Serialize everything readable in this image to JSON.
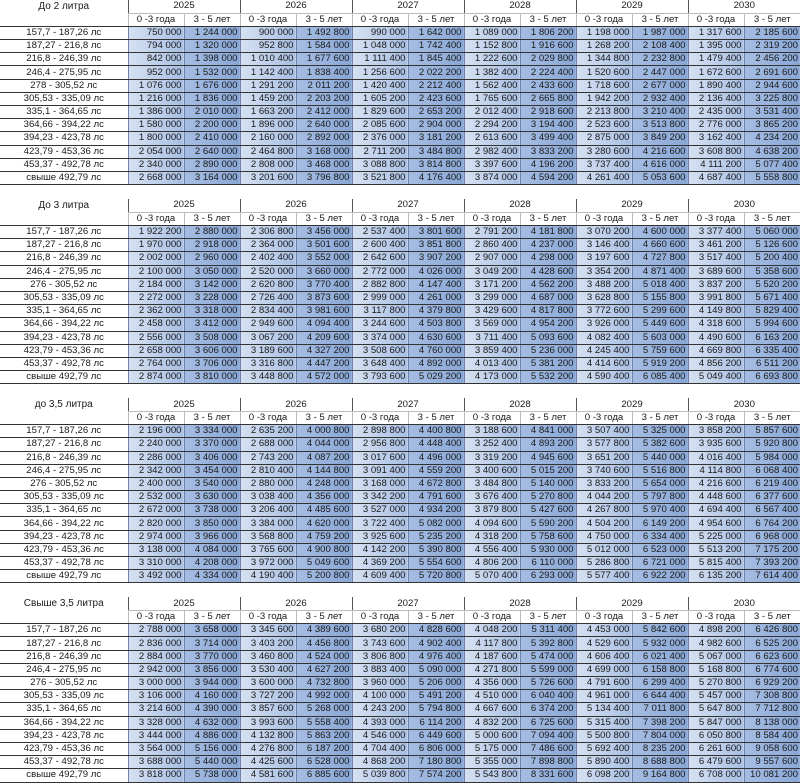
{
  "sub_labels": [
    "0 -3 года",
    "3 - 5 лет"
  ],
  "years": [
    "2025",
    "2026",
    "2027",
    "2028",
    "2029",
    "2030"
  ],
  "colors": {
    "col_0_3": "#c2d3ee",
    "col_3_5": "#98b2dd"
  },
  "tables": [
    {
      "title": "До 2 литра",
      "rows": [
        {
          "label": "157,7  - 187,26 лс",
          "values": [
            "750 000",
            "1 244 000",
            "900 000",
            "1 492 800",
            "990 000",
            "1 642 000",
            "1 089 000",
            "1 806 200",
            "1 198 000",
            "1 987 000",
            "1 317 600",
            "2 185 600"
          ]
        },
        {
          "label": "187,27 - 216,8 лс",
          "values": [
            "794 000",
            "1 320 000",
            "952 800",
            "1 584 000",
            "1 048 000",
            "1 742 400",
            "1 152 800",
            "1 916 600",
            "1 268 200",
            "2 108 400",
            "1 395 000",
            "2 319 200"
          ]
        },
        {
          "label": "216,8  - 246,39 лс",
          "values": [
            "842 000",
            "1 398 000",
            "1 010 400",
            "1 677 600",
            "1 111 400",
            "1 845 400",
            "1 222 600",
            "2 029 800",
            "1 344 800",
            "2 232 800",
            "1 479 400",
            "2 456 200"
          ]
        },
        {
          "label": "246,4  - 275,95 лс",
          "values": [
            "952 000",
            "1 532 000",
            "1 142 400",
            "1 838 400",
            "1 256 600",
            "2 022 200",
            "1 382 400",
            "2 224 400",
            "1 520 600",
            "2 447 000",
            "1 672 600",
            "2 691 600"
          ]
        },
        {
          "label": "278   - 305,52 лс",
          "values": [
            "1 076 000",
            "1 676 000",
            "1 291 200",
            "2 011 200",
            "1 420 400",
            "2 212 400",
            "1 562 400",
            "2 433 600",
            "1 718 600",
            "2 677 000",
            "1 890 400",
            "2 944 600"
          ]
        },
        {
          "label": "305,53 - 335,09 лс",
          "values": [
            "1 216 000",
            "1 836 000",
            "1 459 200",
            "2 203 200",
            "1 605 200",
            "2 423 600",
            "1 765 600",
            "2 665 800",
            "1 942 200",
            "2 932 400",
            "2 136 400",
            "3 225 800"
          ]
        },
        {
          "label": "335,1  - 364,65 лс",
          "values": [
            "1 386 000",
            "2 010 000",
            "1 663 200",
            "2 412 000",
            "1 829 600",
            "2 653 200",
            "2 012 400",
            "2 918 600",
            "2 213 800",
            "3 210 400",
            "2 435 000",
            "3 531 400"
          ]
        },
        {
          "label": "364,66 - 394,22 лс",
          "values": [
            "1 580 000",
            "2 200 000",
            "1 896 000",
            "2 640 000",
            "2 085 600",
            "2 904 000",
            "2 294 200",
            "3 194 400",
            "2 523 600",
            "3 513 800",
            "2 776 000",
            "3 865 200"
          ]
        },
        {
          "label": "394,23 - 423,78 лс",
          "values": [
            "1 800 000",
            "2 410 000",
            "2 160 000",
            "2 892 000",
            "2 376 000",
            "3 181 200",
            "2 613 600",
            "3 499 400",
            "2 875 000",
            "3 849 200",
            "3 162 400",
            "4 234 200"
          ]
        },
        {
          "label": "423,79 - 453,36 лс",
          "values": [
            "2 054 000",
            "2 640 000",
            "2 464 800",
            "3 168 000",
            "2 711 200",
            "3 484 800",
            "2 982 400",
            "3 833 200",
            "3 280 600",
            "4 216 600",
            "3 608 800",
            "4 638 200"
          ]
        },
        {
          "label": "453,37 - 492,78 лс",
          "values": [
            "2 340 000",
            "2 890 000",
            "2 808 000",
            "3 468 000",
            "3 088 800",
            "3 814 800",
            "3 397 600",
            "4 196 200",
            "3 737 400",
            "4 616 000",
            "4 111 200",
            "5 077 400"
          ]
        },
        {
          "label": "свыше 492,79 лс",
          "values": [
            "2 668 000",
            "3 164 000",
            "3 201 600",
            "3 796 800",
            "3 521 800",
            "4 176 400",
            "3 874 000",
            "4 594 200",
            "4 261 400",
            "5 053 600",
            "4 687 400",
            "5 558 800"
          ]
        }
      ]
    },
    {
      "title": "До 3 литра",
      "rows": [
        {
          "label": "157,7  - 187,26 лс",
          "values": [
            "1 922 200",
            "2 880 000",
            "2 306 800",
            "3 456 000",
            "2 537 400",
            "3 801 600",
            "2 791 200",
            "4 181 800",
            "3 070 200",
            "4 600 000",
            "3 377 400",
            "5 060 000"
          ]
        },
        {
          "label": "187,27 - 216,8 лс",
          "values": [
            "1 970 000",
            "2 918 000",
            "2 364 000",
            "3 501 600",
            "2 600 400",
            "3 851 800",
            "2 860 400",
            "4 237 000",
            "3 146 400",
            "4 660 600",
            "3 461 200",
            "5 126 600"
          ]
        },
        {
          "label": "216,8  - 246,39 лс",
          "values": [
            "2 002 000",
            "2 960 000",
            "2 402 400",
            "3 552 000",
            "2 642 600",
            "3 907 200",
            "2 907 000",
            "4 298 000",
            "3 197 600",
            "4 727 800",
            "3 517 400",
            "5 200 400"
          ]
        },
        {
          "label": "246,4  - 275,95 лс",
          "values": [
            "2 100 000",
            "3 050 000",
            "2 520 000",
            "3 660 000",
            "2 772 000",
            "4 026 000",
            "3 049 200",
            "4 428 600",
            "3 354 200",
            "4 871 400",
            "3 689 600",
            "5 358 600"
          ]
        },
        {
          "label": "276   - 305,52 лс",
          "values": [
            "2 184 000",
            "3 142 000",
            "2 620 800",
            "3 770 400",
            "2 882 800",
            "4 147 400",
            "3 171 200",
            "4 562 200",
            "3 488 200",
            "5 018 400",
            "3 837 200",
            "5 520 200"
          ]
        },
        {
          "label": "305,53 - 335,09 лс",
          "values": [
            "2 272 000",
            "3 228 000",
            "2 726 400",
            "3 873 600",
            "2 999 000",
            "4 261 000",
            "3 299 000",
            "4 687 000",
            "3 628 800",
            "5 155 800",
            "3 991 800",
            "5 671 400"
          ]
        },
        {
          "label": "335,1  - 364,65 лс",
          "values": [
            "2 362 000",
            "3 318 000",
            "2 834 400",
            "3 981 600",
            "3 117 800",
            "4 379 800",
            "3 429 600",
            "4 817 800",
            "3 772 600",
            "5 299 600",
            "4 149 800",
            "5 829 400"
          ]
        },
        {
          "label": "364,66 - 394,22 лс",
          "values": [
            "2 458 000",
            "3 412 000",
            "2 949 600",
            "4 094 400",
            "3 244 600",
            "4 503 800",
            "3 569 000",
            "4 954 200",
            "3 926 000",
            "5 449 600",
            "4 318 600",
            "5 994 600"
          ]
        },
        {
          "label": "394,23 - 423,78 лс",
          "values": [
            "2 556 000",
            "3 508 000",
            "3 067 200",
            "4 209 600",
            "3 374 000",
            "4 630 600",
            "3 711 400",
            "5 093 600",
            "4 082 400",
            "5 603 000",
            "4 490 600",
            "6 163 200"
          ]
        },
        {
          "label": "423,79 - 453,36 лс",
          "values": [
            "2 658 000",
            "3 606 000",
            "3 189 600",
            "4 327 200",
            "3 508 600",
            "4 760 000",
            "3 859 400",
            "5 236 000",
            "4 245 400",
            "5 759 600",
            "4 669 800",
            "6 335 400"
          ]
        },
        {
          "label": "453,37 - 492,78 лс",
          "values": [
            "2 764 000",
            "3 706 000",
            "3 316 800",
            "4 447 200",
            "3 648 400",
            "4 892 000",
            "4 013 400",
            "5 381 200",
            "4 414 600",
            "5 919 200",
            "4 856 200",
            "6 511 200"
          ]
        },
        {
          "label": "свыше 492,79 лс",
          "values": [
            "2 874 000",
            "3 810 000",
            "3 448 800",
            "4 572 000",
            "3 793 600",
            "5 029 200",
            "4 173 000",
            "5 532 200",
            "4 590 400",
            "6 085 400",
            "5 049 400",
            "6 693 800"
          ]
        }
      ]
    },
    {
      "title": "до 3,5 литра",
      "rows": [
        {
          "label": "157,7  - 187,26 лс",
          "values": [
            "2 196 000",
            "3 334 000",
            "2 635 200",
            "4 000 800",
            "2 898 800",
            "4 400 800",
            "3 188 600",
            "4 841 000",
            "3 507 400",
            "5 325 000",
            "3 858 200",
            "5 857 600"
          ]
        },
        {
          "label": "187,27 - 216,8 лс",
          "values": [
            "2 240 000",
            "3 370 000",
            "2 688 000",
            "4 044 000",
            "2 956 800",
            "4 448 400",
            "3 252 400",
            "4 893 200",
            "3 577 800",
            "5 382 600",
            "3 935 600",
            "5 920 800"
          ]
        },
        {
          "label": "216,8  - 246,39 лс",
          "values": [
            "2 286 000",
            "3 406 000",
            "2 743 200",
            "4 087 200",
            "3 017 600",
            "4 496 000",
            "3 319 200",
            "4 945 600",
            "3 651 200",
            "5 440 000",
            "4 016 400",
            "5 984 000"
          ]
        },
        {
          "label": "246,4  - 275,95 лс",
          "values": [
            "2 342 000",
            "3 454 000",
            "2 810 400",
            "4 144 800",
            "3 091 400",
            "4 559 200",
            "3 400 600",
            "5 015 200",
            "3 740 600",
            "5 516 800",
            "4 114 800",
            "6 068 400"
          ]
        },
        {
          "label": "276   - 305,52 лс",
          "values": [
            "2 400 000",
            "3 540 000",
            "2 880 000",
            "4 248 000",
            "3 168 000",
            "4 672 800",
            "3 484 800",
            "5 140 000",
            "3 833 200",
            "5 654 000",
            "4 216 600",
            "6 219 400"
          ]
        },
        {
          "label": "305,53 - 335,09 лс",
          "values": [
            "2 532 000",
            "3 630 000",
            "3 038 400",
            "4 356 000",
            "3 342 200",
            "4 791 600",
            "3 676 400",
            "5 270 800",
            "4 044 200",
            "5 797 800",
            "4 448 600",
            "6 377 600"
          ]
        },
        {
          "label": "335,1  - 364,65 лс",
          "values": [
            "2 672 000",
            "3 738 000",
            "3 206 400",
            "4 485 600",
            "3 527 000",
            "4 934 200",
            "3 879 800",
            "5 427 600",
            "4 267 800",
            "5 970 400",
            "4 694 400",
            "6 567 400"
          ]
        },
        {
          "label": "364,66 - 394,22 лс",
          "values": [
            "2 820 000",
            "3 850 000",
            "3 384 000",
            "4 620 000",
            "3 722 400",
            "5 082 000",
            "4 094 600",
            "5 590 200",
            "4 504 200",
            "6 149 200",
            "4 954 600",
            "6 764 200"
          ]
        },
        {
          "label": "394,23 - 423,78 лс",
          "values": [
            "2 974 000",
            "3 966 000",
            "3 568 800",
            "4 759 200",
            "3 925 600",
            "5 235 200",
            "4 318 200",
            "5 758 600",
            "4 750 000",
            "6 334 400",
            "5 225 000",
            "6 968 000"
          ]
        },
        {
          "label": "423,79 - 453,36 лс",
          "values": [
            "3 138 000",
            "4 084 000",
            "3 765 600",
            "4 900 800",
            "4 142 200",
            "5 390 800",
            "4 556 400",
            "5 930 000",
            "5 012 000",
            "6 523 000",
            "5 513 200",
            "7 175 200"
          ]
        },
        {
          "label": "453,37 - 492,78 лс",
          "values": [
            "3 310 000",
            "4 208 000",
            "3 972 000",
            "5 049 600",
            "4 369 200",
            "5 554 600",
            "4 806 200",
            "6 110 000",
            "5 286 800",
            "6 721 000",
            "5 815 400",
            "7 393 200"
          ]
        },
        {
          "label": "свыше 492,79 лс",
          "values": [
            "3 492 000",
            "4 334 000",
            "4 190 400",
            "5 200 800",
            "4 609 400",
            "5 720 800",
            "5 070 400",
            "6 293 000",
            "5 577 400",
            "6 922 200",
            "6 135 200",
            "7 614 400"
          ]
        }
      ]
    },
    {
      "title": "Свыше 3,5 литра",
      "rows": [
        {
          "label": "157,7  - 187,26 лс",
          "values": [
            "2 788 000",
            "3 658 000",
            "3 345 600",
            "4 389 600",
            "3 680 200",
            "4 828 600",
            "4 048 200",
            "5 311 400",
            "4 453 000",
            "5 842 600",
            "4 898 200",
            "6 426 800"
          ]
        },
        {
          "label": "187,27 - 216,8 лс",
          "values": [
            "2 836 000",
            "3 714 000",
            "3 403 200",
            "4 456 800",
            "3 743 600",
            "4 902 400",
            "4 117 800",
            "5 392 800",
            "4 529 600",
            "5 932 000",
            "4 982 600",
            "6 525 200"
          ]
        },
        {
          "label": "216,8  - 246,39 лс",
          "values": [
            "2 884 000",
            "3 770 000",
            "3 460 800",
            "4 524 000",
            "3 806 800",
            "4 976 400",
            "4 187 600",
            "5 474 000",
            "4 606 400",
            "6 021 400",
            "5 067 000",
            "6 623 600"
          ]
        },
        {
          "label": "246,4  - 275,95 лс",
          "values": [
            "2 942 000",
            "3 856 000",
            "3 530 400",
            "4 627 200",
            "3 883 400",
            "5 090 000",
            "4 271 800",
            "5 599 000",
            "4 699 000",
            "6 158 800",
            "5 168 800",
            "6 774 600"
          ]
        },
        {
          "label": "276   - 305,52 лс",
          "values": [
            "3 000 000",
            "3 944 000",
            "3 600 000",
            "4 732 800",
            "3 960 000",
            "5 206 000",
            "4 356 000",
            "5 726 600",
            "4 791 600",
            "6 299 400",
            "5 270 800",
            "6 929 200"
          ]
        },
        {
          "label": "305,53 - 335,09 лс",
          "values": [
            "3 106 000",
            "4 160 000",
            "3 727 200",
            "4 992 000",
            "4 100 000",
            "5 491 200",
            "4 510 000",
            "6 040 400",
            "4 961 000",
            "6 644 400",
            "5 457 000",
            "7 308 800"
          ]
        },
        {
          "label": "335,1  - 364,65 лс",
          "values": [
            "3 214 600",
            "4 390 000",
            "3 857 600",
            "5 268 000",
            "4 243 200",
            "5 794 800",
            "4 667 600",
            "6 374 200",
            "5 134 400",
            "7 011 800",
            "5 647 800",
            "7 712 800"
          ]
        },
        {
          "label": "364,66 - 394,22 лс",
          "values": [
            "3 328 000",
            "4 632 000",
            "3 993 600",
            "5 558 400",
            "4 393 000",
            "6 114 200",
            "4 832 200",
            "6 725 600",
            "5 315 400",
            "7 398 200",
            "5 847 000",
            "8 138 000"
          ]
        },
        {
          "label": "394,23 - 423,78 лс",
          "values": [
            "3 444 000",
            "4 886 000",
            "4 132 800",
            "5 863 200",
            "4 546 000",
            "6 449 600",
            "5 000 600",
            "7 094 400",
            "5 500 800",
            "7 804 000",
            "6 050 800",
            "8 584 400"
          ]
        },
        {
          "label": "423,79 - 453,36 лс",
          "values": [
            "3 564 000",
            "5 156 000",
            "4 276 800",
            "6 187 200",
            "4 704 400",
            "6 806 000",
            "5 175 000",
            "7 486 600",
            "5 692 400",
            "8 235 200",
            "6 261 600",
            "9 058 600"
          ]
        },
        {
          "label": "453,37 - 492,78 лс",
          "values": [
            "3 688 000",
            "5 440 000",
            "4 425 600",
            "6 528 000",
            "4 868 200",
            "7 180 800",
            "5 355 000",
            "7 898 800",
            "5 890 400",
            "8 688 800",
            "6 479 600",
            "9 557 600"
          ]
        },
        {
          "label": "свыше 492,79 лс",
          "values": [
            "3 818 000",
            "5 738 000",
            "4 581 600",
            "6 885 600",
            "5 039 800",
            "7 574 200",
            "5 543 800",
            "8 331 600",
            "6 098 200",
            "9 164 800",
            "6 708 000",
            "10 081 200"
          ]
        }
      ]
    }
  ]
}
